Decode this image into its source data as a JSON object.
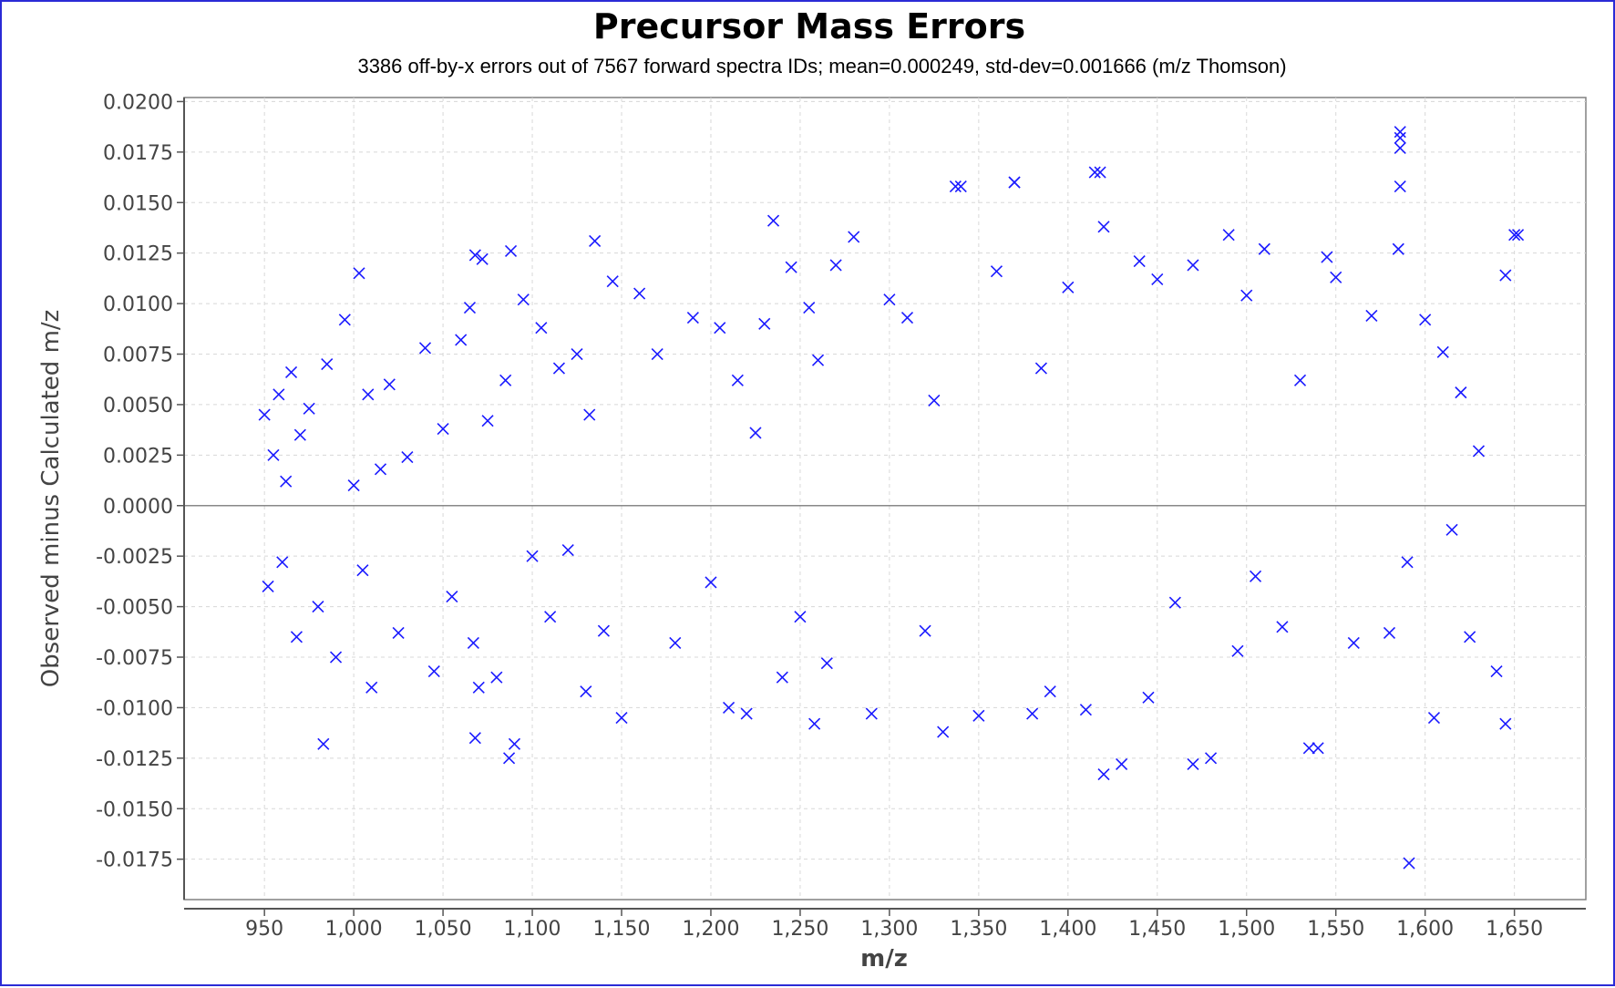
{
  "chart_data": {
    "type": "scatter",
    "title": "Precursor Mass Errors",
    "subtitle": "3386 off-by-x errors out of 7567 forward spectra IDs;  mean=0.000249, std-dev=0.001666 (m/z Thomson)",
    "xlabel": "m/z",
    "ylabel": "Observed minus Calculated m/z",
    "xlim": [
      905,
      1690
    ],
    "ylim": [
      -0.0195,
      0.0202
    ],
    "x_ticks": [
      950,
      1000,
      1050,
      1100,
      1150,
      1200,
      1250,
      1300,
      1350,
      1400,
      1450,
      1500,
      1550,
      1600,
      1650
    ],
    "x_tick_labels": [
      "950",
      "1,000",
      "1,050",
      "1,100",
      "1,150",
      "1,200",
      "1,250",
      "1,300",
      "1,350",
      "1,400",
      "1,450",
      "1,500",
      "1,550",
      "1,600",
      "1,650"
    ],
    "y_ticks": [
      0.02,
      0.0175,
      0.015,
      0.0125,
      0.01,
      0.0075,
      0.005,
      0.0025,
      0,
      -0.0025,
      -0.005,
      -0.0075,
      -0.01,
      -0.0125,
      -0.015,
      -0.0175
    ],
    "y_tick_labels": [
      "0.0200",
      "0.0175",
      "0.0150",
      "0.0125",
      "0.0100",
      "0.0075",
      "0.0050",
      "0.0025",
      "0.0000",
      "-0.0025",
      "-0.0050",
      "-0.0075",
      "-0.0100",
      "-0.0125",
      "-0.0150",
      "-0.0175"
    ],
    "grid": true,
    "zero_line": 0,
    "marker": "x",
    "colors": {
      "marker": "#1a1aff",
      "frame": "#2b2bd6",
      "grid": "#d8d8d8",
      "zero_line": "#888888"
    },
    "series": [
      {
        "x": [
          950,
          952,
          955,
          958,
          960,
          962,
          965,
          968,
          970,
          975,
          980,
          985,
          990,
          995,
          1000,
          1003,
          1005,
          1008,
          1010,
          1015,
          1020,
          1025,
          1030,
          1040,
          1045,
          1050,
          1055,
          1060,
          1065,
          1067,
          1068,
          1070,
          1072,
          1075,
          1080,
          1085,
          1088,
          1090,
          1095,
          1100,
          1105,
          1110,
          1115,
          1120,
          1125,
          1130,
          1132,
          1135,
          1140,
          1145,
          1150,
          1160,
          1170,
          1180,
          1190,
          1200,
          1205,
          1210,
          1215,
          1220,
          1225,
          1230,
          1235,
          1240,
          1245,
          1250,
          1255,
          1258,
          1260,
          1265,
          1270,
          1280,
          1290,
          1300,
          1310,
          1320,
          1325,
          1330,
          1340,
          1350,
          1360,
          1370,
          1380,
          1385,
          1390,
          1400,
          1410,
          1415,
          1420,
          1430,
          1440,
          1445,
          1450,
          1460,
          1470,
          1480,
          1490,
          1495,
          1500,
          1505,
          1510,
          1520,
          1530,
          1540,
          1545,
          1550,
          1560,
          1570,
          1580,
          1585,
          1590,
          1600,
          1605,
          1610,
          1615,
          1620,
          1625,
          1630,
          1640,
          1645,
          1650,
          983,
          1068,
          1087,
          1337,
          1370,
          1418,
          1586,
          1586,
          1586,
          1586,
          1591,
          1652,
          1420,
          1470,
          1535,
          1645
        ],
        "y": [
          0.0045,
          -0.004,
          0.0025,
          0.0055,
          -0.0028,
          0.0012,
          0.0066,
          -0.0065,
          0.0035,
          0.0048,
          -0.005,
          0.007,
          -0.0075,
          0.0092,
          0.001,
          0.0115,
          -0.0032,
          0.0055,
          -0.009,
          0.0018,
          0.006,
          -0.0063,
          0.0024,
          0.0078,
          -0.0082,
          0.0038,
          -0.0045,
          0.0082,
          0.0098,
          -0.0068,
          0.0124,
          -0.009,
          0.0122,
          0.0042,
          -0.0085,
          0.0062,
          0.0126,
          -0.0118,
          0.0102,
          -0.0025,
          0.0088,
          -0.0055,
          0.0068,
          -0.0022,
          0.0075,
          -0.0092,
          0.0045,
          0.0131,
          -0.0062,
          0.0111,
          -0.0105,
          0.0105,
          0.0075,
          -0.0068,
          0.0093,
          -0.0038,
          0.0088,
          -0.01,
          0.0062,
          -0.0103,
          0.0036,
          0.009,
          0.0141,
          -0.0085,
          0.0118,
          -0.0055,
          0.0098,
          -0.0108,
          0.0072,
          -0.0078,
          0.0119,
          0.0133,
          -0.0103,
          0.0102,
          0.0093,
          -0.0062,
          0.0052,
          -0.0112,
          0.0158,
          -0.0104,
          0.0116,
          0.016,
          -0.0103,
          0.0068,
          -0.0092,
          0.0108,
          -0.0101,
          0.0165,
          0.0138,
          -0.0128,
          0.0121,
          -0.0095,
          0.0112,
          -0.0048,
          0.0119,
          -0.0125,
          0.0134,
          -0.0072,
          0.0104,
          -0.0035,
          0.0127,
          -0.006,
          0.0062,
          -0.012,
          0.0123,
          0.0113,
          -0.0068,
          0.0094,
          -0.0063,
          0.0127,
          -0.0028,
          0.0092,
          -0.0105,
          0.0076,
          -0.0012,
          0.0056,
          -0.0065,
          0.0027,
          -0.0082,
          0.0114,
          0.0134,
          -0.0118,
          -0.0115,
          -0.0125,
          0.0158,
          0.016,
          0.0165,
          0.0185,
          0.0182,
          0.0177,
          0.0158,
          -0.0177,
          0.0134,
          -0.0133,
          -0.0128,
          -0.012,
          -0.0108
        ]
      }
    ]
  }
}
